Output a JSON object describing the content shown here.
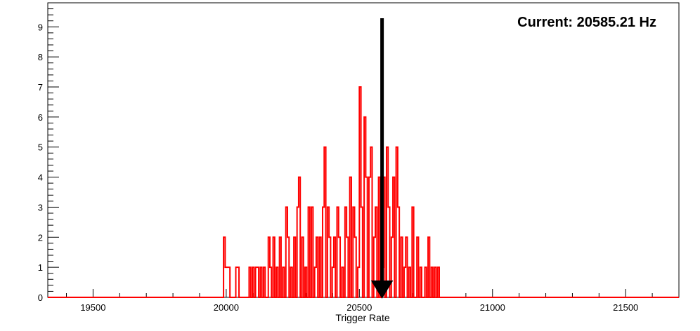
{
  "chart_data": {
    "type": "histogram",
    "xlabel": "Trigger Rate",
    "ylabel": "",
    "title": "",
    "annotation": "Current: 20585.21 Hz",
    "current_value": 20585.21,
    "xlim": [
      19330,
      21700
    ],
    "ylim": [
      0,
      9.8
    ],
    "x_ticks": [
      19500,
      20000,
      20500,
      21000,
      21500
    ],
    "y_ticks": [
      0,
      1,
      2,
      3,
      4,
      5,
      6,
      7,
      8,
      9
    ],
    "grid": false,
    "series_color": "#ff0000",
    "bin_width": 6,
    "bins": [
      {
        "x": 19990,
        "count": 2
      },
      {
        "x": 19996,
        "count": 1
      },
      {
        "x": 20002,
        "count": 1
      },
      {
        "x": 20008,
        "count": 1
      },
      {
        "x": 20036,
        "count": 1
      },
      {
        "x": 20042,
        "count": 1
      },
      {
        "x": 20086,
        "count": 1
      },
      {
        "x": 20098,
        "count": 1
      },
      {
        "x": 20110,
        "count": 1
      },
      {
        "x": 20116,
        "count": 1
      },
      {
        "x": 20128,
        "count": 1
      },
      {
        "x": 20140,
        "count": 1
      },
      {
        "x": 20158,
        "count": 2
      },
      {
        "x": 20164,
        "count": 1
      },
      {
        "x": 20176,
        "count": 2
      },
      {
        "x": 20188,
        "count": 1
      },
      {
        "x": 20200,
        "count": 2
      },
      {
        "x": 20212,
        "count": 1
      },
      {
        "x": 20224,
        "count": 3
      },
      {
        "x": 20230,
        "count": 2
      },
      {
        "x": 20242,
        "count": 1
      },
      {
        "x": 20254,
        "count": 2
      },
      {
        "x": 20266,
        "count": 3
      },
      {
        "x": 20272,
        "count": 4
      },
      {
        "x": 20284,
        "count": 2
      },
      {
        "x": 20296,
        "count": 1
      },
      {
        "x": 20308,
        "count": 3
      },
      {
        "x": 20320,
        "count": 3
      },
      {
        "x": 20332,
        "count": 1
      },
      {
        "x": 20338,
        "count": 2
      },
      {
        "x": 20350,
        "count": 2
      },
      {
        "x": 20362,
        "count": 3
      },
      {
        "x": 20368,
        "count": 5
      },
      {
        "x": 20380,
        "count": 3
      },
      {
        "x": 20386,
        "count": 2
      },
      {
        "x": 20398,
        "count": 1
      },
      {
        "x": 20404,
        "count": 2
      },
      {
        "x": 20416,
        "count": 3
      },
      {
        "x": 20422,
        "count": 2
      },
      {
        "x": 20434,
        "count": 1
      },
      {
        "x": 20446,
        "count": 3
      },
      {
        "x": 20452,
        "count": 2
      },
      {
        "x": 20464,
        "count": 4
      },
      {
        "x": 20476,
        "count": 3
      },
      {
        "x": 20482,
        "count": 2
      },
      {
        "x": 20494,
        "count": 1
      },
      {
        "x": 20500,
        "count": 7
      },
      {
        "x": 20506,
        "count": 3
      },
      {
        "x": 20518,
        "count": 6
      },
      {
        "x": 20524,
        "count": 4
      },
      {
        "x": 20536,
        "count": 4
      },
      {
        "x": 20542,
        "count": 5
      },
      {
        "x": 20554,
        "count": 2
      },
      {
        "x": 20560,
        "count": 3
      },
      {
        "x": 20572,
        "count": 4
      },
      {
        "x": 20584,
        "count": 1
      },
      {
        "x": 20590,
        "count": 4
      },
      {
        "x": 20602,
        "count": 5
      },
      {
        "x": 20608,
        "count": 3
      },
      {
        "x": 20620,
        "count": 2
      },
      {
        "x": 20626,
        "count": 4
      },
      {
        "x": 20638,
        "count": 5
      },
      {
        "x": 20644,
        "count": 3
      },
      {
        "x": 20656,
        "count": 2
      },
      {
        "x": 20668,
        "count": 1
      },
      {
        "x": 20674,
        "count": 2
      },
      {
        "x": 20686,
        "count": 1
      },
      {
        "x": 20698,
        "count": 3
      },
      {
        "x": 20716,
        "count": 2
      },
      {
        "x": 20728,
        "count": 1
      },
      {
        "x": 20746,
        "count": 1
      },
      {
        "x": 20758,
        "count": 2
      },
      {
        "x": 20770,
        "count": 1
      },
      {
        "x": 20782,
        "count": 1
      },
      {
        "x": 20794,
        "count": 1
      }
    ]
  }
}
